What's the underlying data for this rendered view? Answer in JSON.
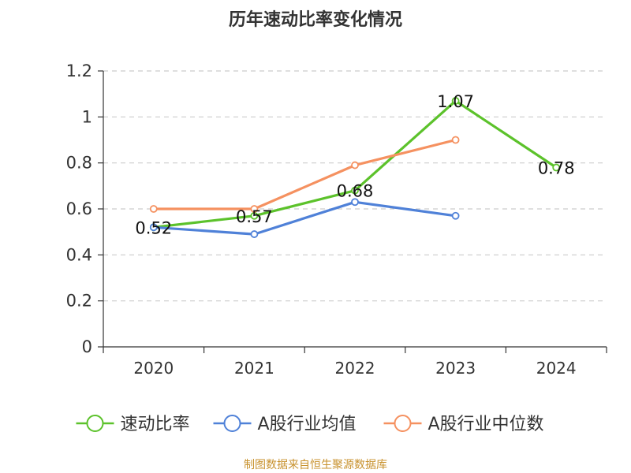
{
  "source": "制图数据来自恒生聚源数据库",
  "colors": {
    "title": "#333333",
    "axis": "#333333",
    "grid": "#cccccc",
    "source": "#c8922e",
    "background": "#ffffff"
  },
  "chart_data": {
    "type": "line",
    "title": "历年速动比率变化情况",
    "xlabel": "",
    "ylabel": "",
    "categories": [
      "2020",
      "2021",
      "2022",
      "2023",
      "2024"
    ],
    "ylim": [
      0,
      1.2
    ],
    "yticks": [
      "0",
      "0.2",
      "0.4",
      "0.6",
      "0.8",
      "1",
      "1.2"
    ],
    "grid": true,
    "legend_position": "bottom",
    "series": [
      {
        "name": "速动比率",
        "color": "#5cc22b",
        "values": [
          0.52,
          0.57,
          0.68,
          1.07,
          0.78
        ],
        "labels": [
          "0.52",
          "0.57",
          "0.68",
          "1.07",
          "0.78"
        ],
        "show_labels": true
      },
      {
        "name": "A股行业均值",
        "color": "#4f81d8",
        "values": [
          0.52,
          0.49,
          0.63,
          0.57,
          null
        ],
        "show_labels": false
      },
      {
        "name": "A股行业中位数",
        "color": "#f59160",
        "values": [
          0.6,
          0.6,
          0.79,
          0.9,
          null
        ],
        "show_labels": false
      }
    ]
  }
}
